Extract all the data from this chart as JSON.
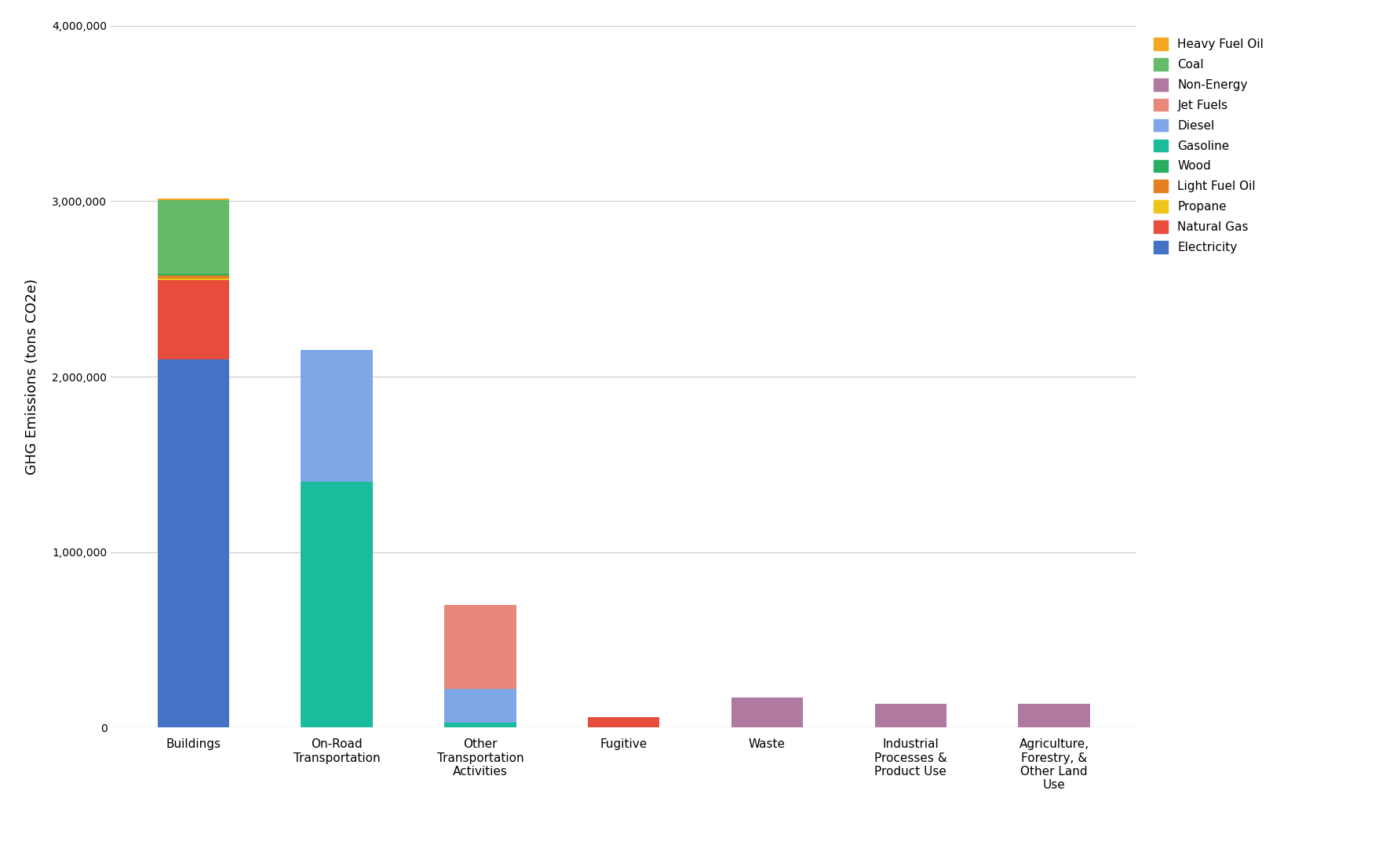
{
  "categories": [
    "Buildings",
    "On-Road\nTransportation",
    "Other\nTransportation\nActivities",
    "Fugitive",
    "Waste",
    "Industrial\nProcesses &\nProduct Use",
    "Agriculture,\nForestry, &\nOther Land\nUse"
  ],
  "series": {
    "Electricity": [
      2100000,
      0,
      0,
      0,
      0,
      0,
      0
    ],
    "Natural Gas": [
      450000,
      0,
      0,
      60000,
      0,
      0,
      0
    ],
    "Propane": [
      8000,
      0,
      0,
      0,
      0,
      0,
      0
    ],
    "Light Fuel Oil": [
      18000,
      0,
      0,
      0,
      0,
      0,
      0
    ],
    "Wood": [
      12000,
      0,
      0,
      0,
      0,
      0,
      0
    ],
    "Gasoline": [
      0,
      1400000,
      30000,
      0,
      0,
      0,
      0
    ],
    "Diesel": [
      0,
      750000,
      190000,
      0,
      0,
      0,
      0
    ],
    "Jet Fuels": [
      0,
      0,
      480000,
      0,
      0,
      0,
      0
    ],
    "Non-Energy": [
      0,
      0,
      0,
      0,
      170000,
      135000,
      135000
    ],
    "Coal": [
      420000,
      0,
      0,
      0,
      0,
      0,
      0
    ],
    "Heavy Fuel Oil": [
      5000,
      0,
      0,
      0,
      0,
      0,
      0
    ]
  },
  "colors": {
    "Electricity": "#4472C4",
    "Natural Gas": "#E74C3C",
    "Propane": "#F0C419",
    "Light Fuel Oil": "#E67E22",
    "Wood": "#27AE60",
    "Gasoline": "#1ABC9C",
    "Diesel": "#7FA7E8",
    "Jet Fuels": "#E8877A",
    "Non-Energy": "#B07AA0",
    "Coal": "#66BB6A",
    "Heavy Fuel Oil": "#F5A623"
  },
  "legend_order": [
    "Heavy Fuel Oil",
    "Coal",
    "Non-Energy",
    "Jet Fuels",
    "Diesel",
    "Gasoline",
    "Wood",
    "Light Fuel Oil",
    "Propane",
    "Natural Gas",
    "Electricity"
  ],
  "ylabel": "GHG Emissions (tons CO2e)",
  "ylim": [
    0,
    4000000
  ],
  "yticks": [
    0,
    1000000,
    2000000,
    3000000,
    4000000
  ],
  "background_color": "#ffffff",
  "grid_color": "#cccccc",
  "bar_width": 0.5
}
